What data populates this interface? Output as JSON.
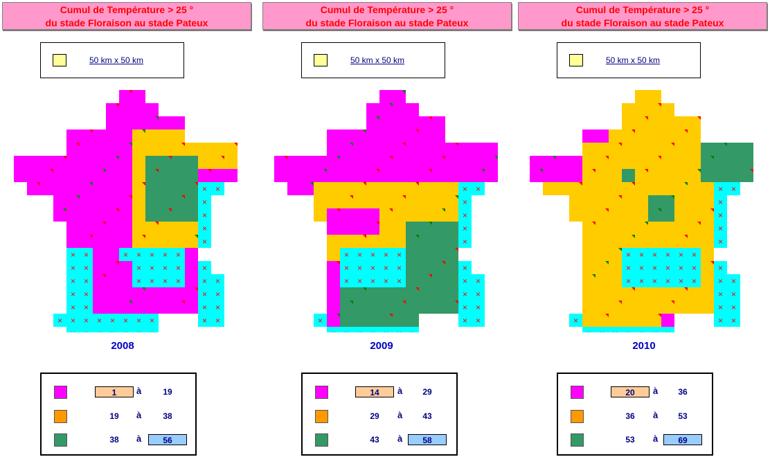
{
  "title_line1": "Cumul de Température > 25 °",
  "title_line2": "du stade Floraison au stade Pateux",
  "scale_label": "50 km x 50 km",
  "colors": {
    "low": "#ff00ff",
    "mid": "#ffcc00",
    "high": "#339966",
    "none": "#00ffff",
    "scale_swatch": "#ffff99"
  },
  "legend_swatches": {
    "low": "#ff00ff",
    "mid": "#ff9900",
    "high": "#339966"
  },
  "legend_word": "à",
  "panels": [
    {
      "year": "2008",
      "legend": [
        {
          "from": "1",
          "to": "19"
        },
        {
          "from": "19",
          "to": "38"
        },
        {
          "from": "38",
          "to": "56"
        }
      ]
    },
    {
      "year": "2009",
      "legend": [
        {
          "from": "14",
          "to": "29"
        },
        {
          "from": "29",
          "to": "43"
        },
        {
          "from": "43",
          "to": "58"
        }
      ]
    },
    {
      "year": "2010",
      "legend": [
        {
          "from": "20",
          "to": "36"
        },
        {
          "from": "36",
          "to": "53"
        },
        {
          "from": "53",
          "to": "69"
        }
      ]
    }
  ]
}
